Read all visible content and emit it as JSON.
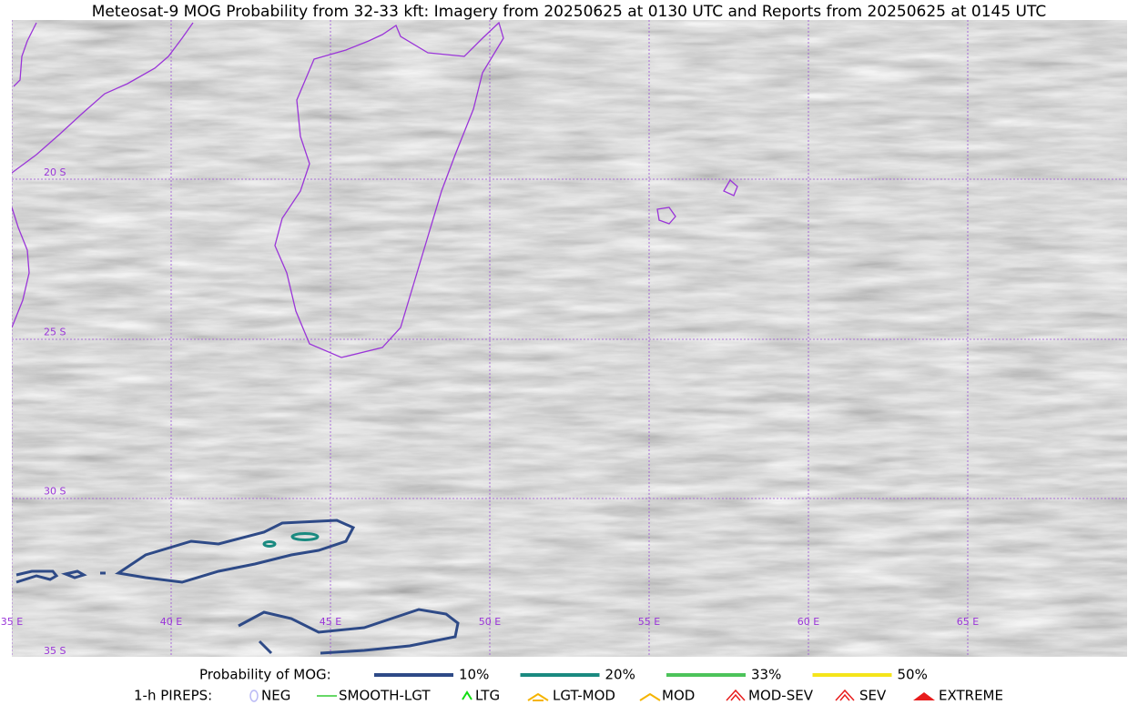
{
  "title": "Meteosat-9 MOG Probability from 32-33 kft: Imagery from 20250625 at 0130 UTC and Reports from 20250625 at 0145 UTC",
  "lat_labels": [
    "20 S",
    "25 S",
    "30 S",
    "35 S"
  ],
  "lon_labels": [
    "35 E",
    "40 E",
    "45 E",
    "50 E",
    "55 E",
    "60 E",
    "65 E"
  ],
  "legend": {
    "title": "Probability of MOG:",
    "items": [
      {
        "label": "10%",
        "color": "#2e4a87"
      },
      {
        "label": "20%",
        "color": "#1a8a80"
      },
      {
        "label": "33%",
        "color": "#4cc35a"
      },
      {
        "label": "50%",
        "color": "#f5e51a"
      }
    ]
  },
  "pireps": {
    "title": "1-h PIREPS:",
    "items": [
      {
        "label": "NEG",
        "color": "#b9b9f5"
      },
      {
        "label": "SMOOTH-LGT",
        "color": "#33cc33"
      },
      {
        "label": "LTG",
        "color": "#11dd11"
      },
      {
        "label": "LGT-MOD",
        "color": "#f5b400"
      },
      {
        "label": "MOD",
        "color": "#f5b400"
      },
      {
        "label": "MOD-SEV",
        "color": "#e81c1c"
      },
      {
        "label": "SEV",
        "color": "#e81c1c"
      },
      {
        "label": "EXTREME",
        "color": "#e81c1c"
      }
    ]
  }
}
